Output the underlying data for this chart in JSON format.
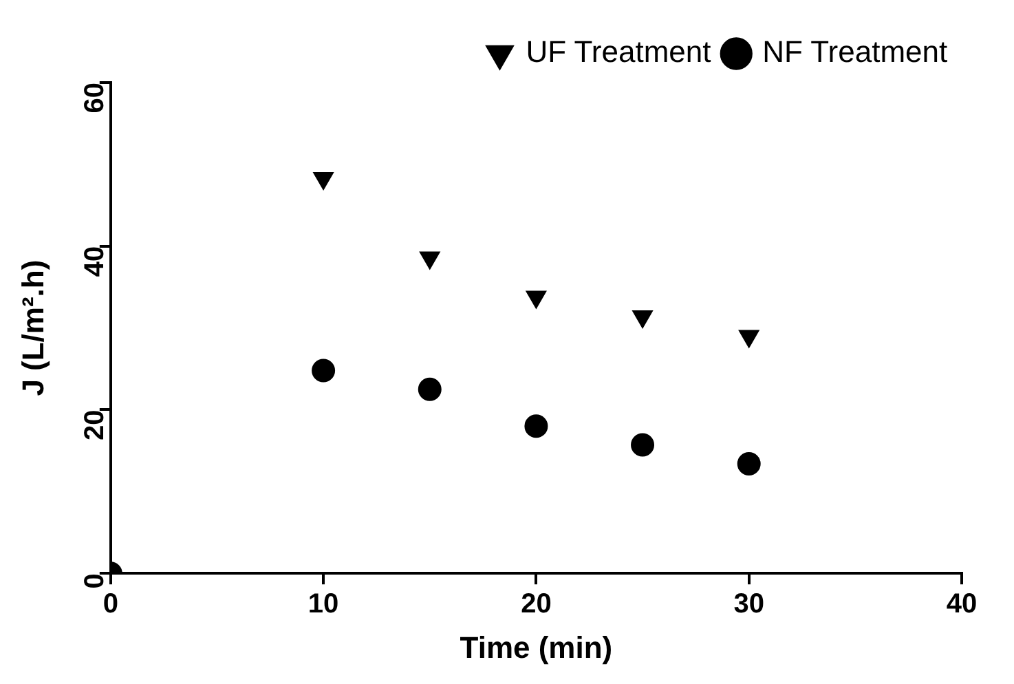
{
  "chart_data": {
    "type": "scatter",
    "xlabel": "Time (min)",
    "ylabel": "J (L/m².h)",
    "x": [
      0,
      10,
      15,
      20,
      25,
      30
    ],
    "series": [
      {
        "name": "UF Treatment",
        "color": "#000000",
        "marker": "triangle",
        "values": [
          null,
          48.3,
          38.6,
          33.8,
          31.4,
          29.0
        ]
      },
      {
        "name": "NF Treatment",
        "color": "#000000",
        "marker": "circle",
        "values": [
          0,
          24.8,
          22.5,
          18.0,
          15.7,
          13.4
        ]
      }
    ],
    "xlim": [
      0,
      40
    ],
    "xticks": [
      0,
      10,
      20,
      30,
      40
    ],
    "ylim": [
      0,
      60
    ],
    "yticks": [
      0,
      20,
      40,
      60
    ],
    "grid": false,
    "legend": "top right"
  }
}
